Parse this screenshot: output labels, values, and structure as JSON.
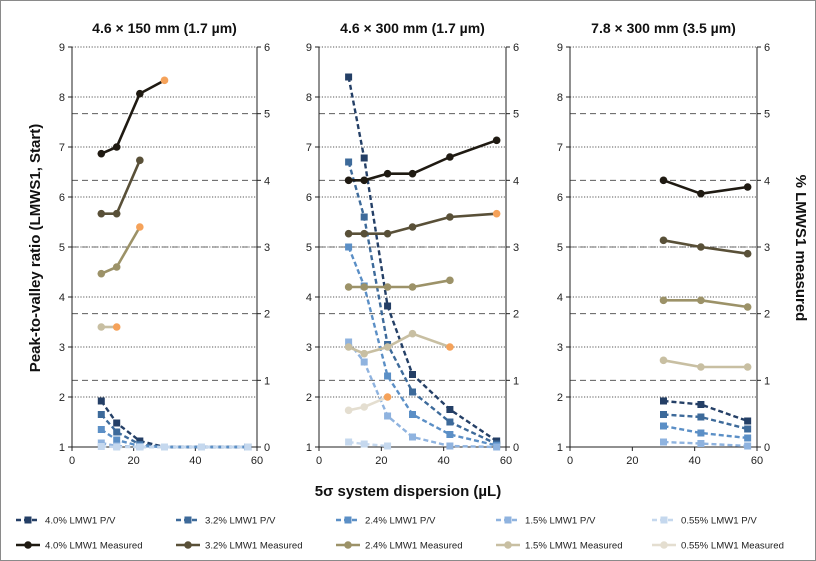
{
  "chart_data": {
    "type": "line",
    "xlabel": "5σ system dispersion (µL)",
    "ylabel_left": "Peak-to-valley ratio (LMWS1, Start)",
    "ylabel_right": "% LMWS1 measured",
    "xlim": [
      0,
      60
    ],
    "xticks": [
      "0",
      "20",
      "40",
      "60"
    ],
    "ylim_left": [
      1,
      9
    ],
    "yticks_left": [
      "1",
      "2",
      "3",
      "4",
      "5",
      "6",
      "7",
      "8",
      "9"
    ],
    "ylim_right": [
      0,
      6
    ],
    "yticks_right": [
      "0",
      "1",
      "2",
      "3",
      "4",
      "5",
      "6"
    ],
    "grid": "horizontal",
    "legend_position": "bottom",
    "highlight_color": "#f5a25a",
    "styles": [
      {
        "name": "4.0% LMW1 P/V",
        "color": "#243f66",
        "marker": "square",
        "dash": true
      },
      {
        "name": "3.2% LMW1 P/V",
        "color": "#3d6a9a",
        "marker": "square",
        "dash": true
      },
      {
        "name": "2.4% LMW1 P/V",
        "color": "#5b8fc6",
        "marker": "square",
        "dash": true
      },
      {
        "name": "1.5% LMW1 P/V",
        "color": "#8fb3df",
        "marker": "square",
        "dash": true
      },
      {
        "name": "0.55% LMW1 P/V",
        "color": "#c5d8ee",
        "marker": "square",
        "dash": true
      },
      {
        "name": "4.0% LMW1 Measured",
        "color": "#1f1a12",
        "marker": "circle",
        "dash": false
      },
      {
        "name": "3.2% LMW1 Measured",
        "color": "#595038",
        "marker": "circle",
        "dash": false
      },
      {
        "name": "2.4% LMW1 Measured",
        "color": "#9c9268",
        "marker": "circle",
        "dash": false
      },
      {
        "name": "1.5% LMW1 Measured",
        "color": "#c8bfa2",
        "marker": "circle",
        "dash": false
      },
      {
        "name": "0.55% LMW1 Measured",
        "color": "#e4ded0",
        "marker": "circle",
        "dash": false
      }
    ],
    "panels": [
      {
        "title": "4.6 × 150 mm (1.7 µm)",
        "series": [
          {
            "style": 0,
            "axis": "left",
            "points": [
              [
                9.5,
                1.92
              ],
              [
                14.5,
                1.48
              ],
              [
                22,
                1.12
              ],
              [
                30,
                1.0
              ],
              [
                42,
                1.0
              ],
              [
                57,
                1.0
              ]
            ]
          },
          {
            "style": 1,
            "axis": "left",
            "points": [
              [
                9.5,
                1.65
              ],
              [
                14.5,
                1.3
              ],
              [
                22,
                1.05
              ],
              [
                30,
                1.0
              ],
              [
                42,
                1.0
              ],
              [
                57,
                1.0
              ]
            ]
          },
          {
            "style": 2,
            "axis": "left",
            "points": [
              [
                9.5,
                1.35
              ],
              [
                14.5,
                1.14
              ],
              [
                22,
                1.02
              ],
              [
                30,
                1.0
              ],
              [
                42,
                1.0
              ],
              [
                57,
                1.0
              ]
            ]
          },
          {
            "style": 3,
            "axis": "left",
            "points": [
              [
                9.5,
                1.08
              ],
              [
                14.5,
                1.02
              ],
              [
                22,
                1.0
              ],
              [
                30,
                1.0
              ],
              [
                42,
                1.0
              ],
              [
                57,
                1.0
              ]
            ]
          },
          {
            "style": 4,
            "axis": "left",
            "points": [
              [
                9.5,
                1.01
              ],
              [
                14.5,
                1.0
              ],
              [
                22,
                1.0
              ],
              [
                30,
                1.0
              ],
              [
                42,
                1.0
              ],
              [
                57,
                1.0
              ]
            ]
          },
          {
            "style": 5,
            "axis": "right",
            "points": [
              [
                9.5,
                4.4
              ],
              [
                14.5,
                4.5
              ],
              [
                22,
                5.3
              ],
              [
                30,
                5.5
              ]
            ],
            "highlight_last": true
          },
          {
            "style": 6,
            "axis": "right",
            "points": [
              [
                9.5,
                3.5
              ],
              [
                14.5,
                3.5
              ],
              [
                22,
                4.3
              ]
            ]
          },
          {
            "style": 7,
            "axis": "right",
            "points": [
              [
                9.5,
                2.6
              ],
              [
                14.5,
                2.7
              ],
              [
                22,
                3.3
              ]
            ],
            "highlight_last": true
          },
          {
            "style": 8,
            "axis": "right",
            "points": [
              [
                9.5,
                1.8
              ],
              [
                14.5,
                1.8
              ]
            ],
            "highlight_last": true
          }
        ]
      },
      {
        "title": "4.6 × 300 mm (1.7 µm)",
        "series": [
          {
            "style": 0,
            "axis": "left",
            "points": [
              [
                9.5,
                8.4
              ],
              [
                14.5,
                6.78
              ],
              [
                22,
                3.82
              ],
              [
                30,
                2.45
              ],
              [
                42,
                1.75
              ],
              [
                57,
                1.12
              ]
            ]
          },
          {
            "style": 1,
            "axis": "left",
            "points": [
              [
                9.5,
                6.7
              ],
              [
                14.5,
                5.6
              ],
              [
                22,
                3.05
              ],
              [
                30,
                2.1
              ],
              [
                42,
                1.5
              ],
              [
                57,
                1.06
              ]
            ]
          },
          {
            "style": 2,
            "axis": "left",
            "points": [
              [
                9.5,
                5.0
              ],
              [
                14.5,
                4.22
              ],
              [
                22,
                2.42
              ],
              [
                30,
                1.65
              ],
              [
                42,
                1.25
              ],
              [
                57,
                1.03
              ]
            ]
          },
          {
            "style": 3,
            "axis": "left",
            "points": [
              [
                9.5,
                3.1
              ],
              [
                14.5,
                2.7
              ],
              [
                22,
                1.62
              ],
              [
                30,
                1.2
              ],
              [
                42,
                1.02
              ],
              [
                57,
                1.0
              ]
            ]
          },
          {
            "style": 4,
            "axis": "left",
            "points": [
              [
                9.5,
                1.1
              ],
              [
                14.5,
                1.06
              ],
              [
                22,
                1.02
              ]
            ]
          },
          {
            "style": 5,
            "axis": "right",
            "points": [
              [
                9.5,
                4.0
              ],
              [
                14.5,
                4.0
              ],
              [
                22,
                4.1
              ],
              [
                30,
                4.1
              ],
              [
                42,
                4.35
              ],
              [
                57,
                4.6
              ]
            ]
          },
          {
            "style": 6,
            "axis": "right",
            "points": [
              [
                9.5,
                3.2
              ],
              [
                14.5,
                3.2
              ],
              [
                22,
                3.2
              ],
              [
                30,
                3.3
              ],
              [
                42,
                3.45
              ],
              [
                57,
                3.5
              ]
            ],
            "highlight_last": true
          },
          {
            "style": 7,
            "axis": "right",
            "points": [
              [
                9.5,
                2.4
              ],
              [
                14.5,
                2.4
              ],
              [
                22,
                2.4
              ],
              [
                30,
                2.4
              ],
              [
                42,
                2.5
              ]
            ]
          },
          {
            "style": 8,
            "axis": "right",
            "points": [
              [
                9.5,
                1.5
              ],
              [
                14.5,
                1.4
              ],
              [
                22,
                1.5
              ],
              [
                30,
                1.7
              ],
              [
                42,
                1.5
              ]
            ],
            "highlight_last": true
          },
          {
            "style": 9,
            "axis": "right",
            "points": [
              [
                9.5,
                0.55
              ],
              [
                14.5,
                0.6
              ],
              [
                22,
                0.75
              ]
            ],
            "highlight_last": true
          }
        ]
      },
      {
        "title": "7.8 × 300 mm (3.5 µm)",
        "series": [
          {
            "style": 0,
            "axis": "left",
            "points": [
              [
                30,
                1.92
              ],
              [
                42,
                1.85
              ],
              [
                57,
                1.52
              ]
            ]
          },
          {
            "style": 1,
            "axis": "left",
            "points": [
              [
                30,
                1.65
              ],
              [
                42,
                1.6
              ],
              [
                57,
                1.36
              ]
            ]
          },
          {
            "style": 2,
            "axis": "left",
            "points": [
              [
                30,
                1.42
              ],
              [
                42,
                1.28
              ],
              [
                57,
                1.18
              ]
            ]
          },
          {
            "style": 3,
            "axis": "left",
            "points": [
              [
                30,
                1.1
              ],
              [
                42,
                1.07
              ],
              [
                57,
                1.02
              ]
            ]
          },
          {
            "style": 5,
            "axis": "right",
            "points": [
              [
                30,
                4.0
              ],
              [
                42,
                3.8
              ],
              [
                57,
                3.9
              ]
            ]
          },
          {
            "style": 6,
            "axis": "right",
            "points": [
              [
                30,
                3.1
              ],
              [
                42,
                3.0
              ],
              [
                57,
                2.9
              ]
            ]
          },
          {
            "style": 7,
            "axis": "right",
            "points": [
              [
                30,
                2.2
              ],
              [
                42,
                2.2
              ],
              [
                57,
                2.1
              ]
            ]
          },
          {
            "style": 8,
            "axis": "right",
            "points": [
              [
                30,
                1.3
              ],
              [
                42,
                1.2
              ],
              [
                57,
                1.2
              ]
            ]
          }
        ]
      }
    ]
  }
}
